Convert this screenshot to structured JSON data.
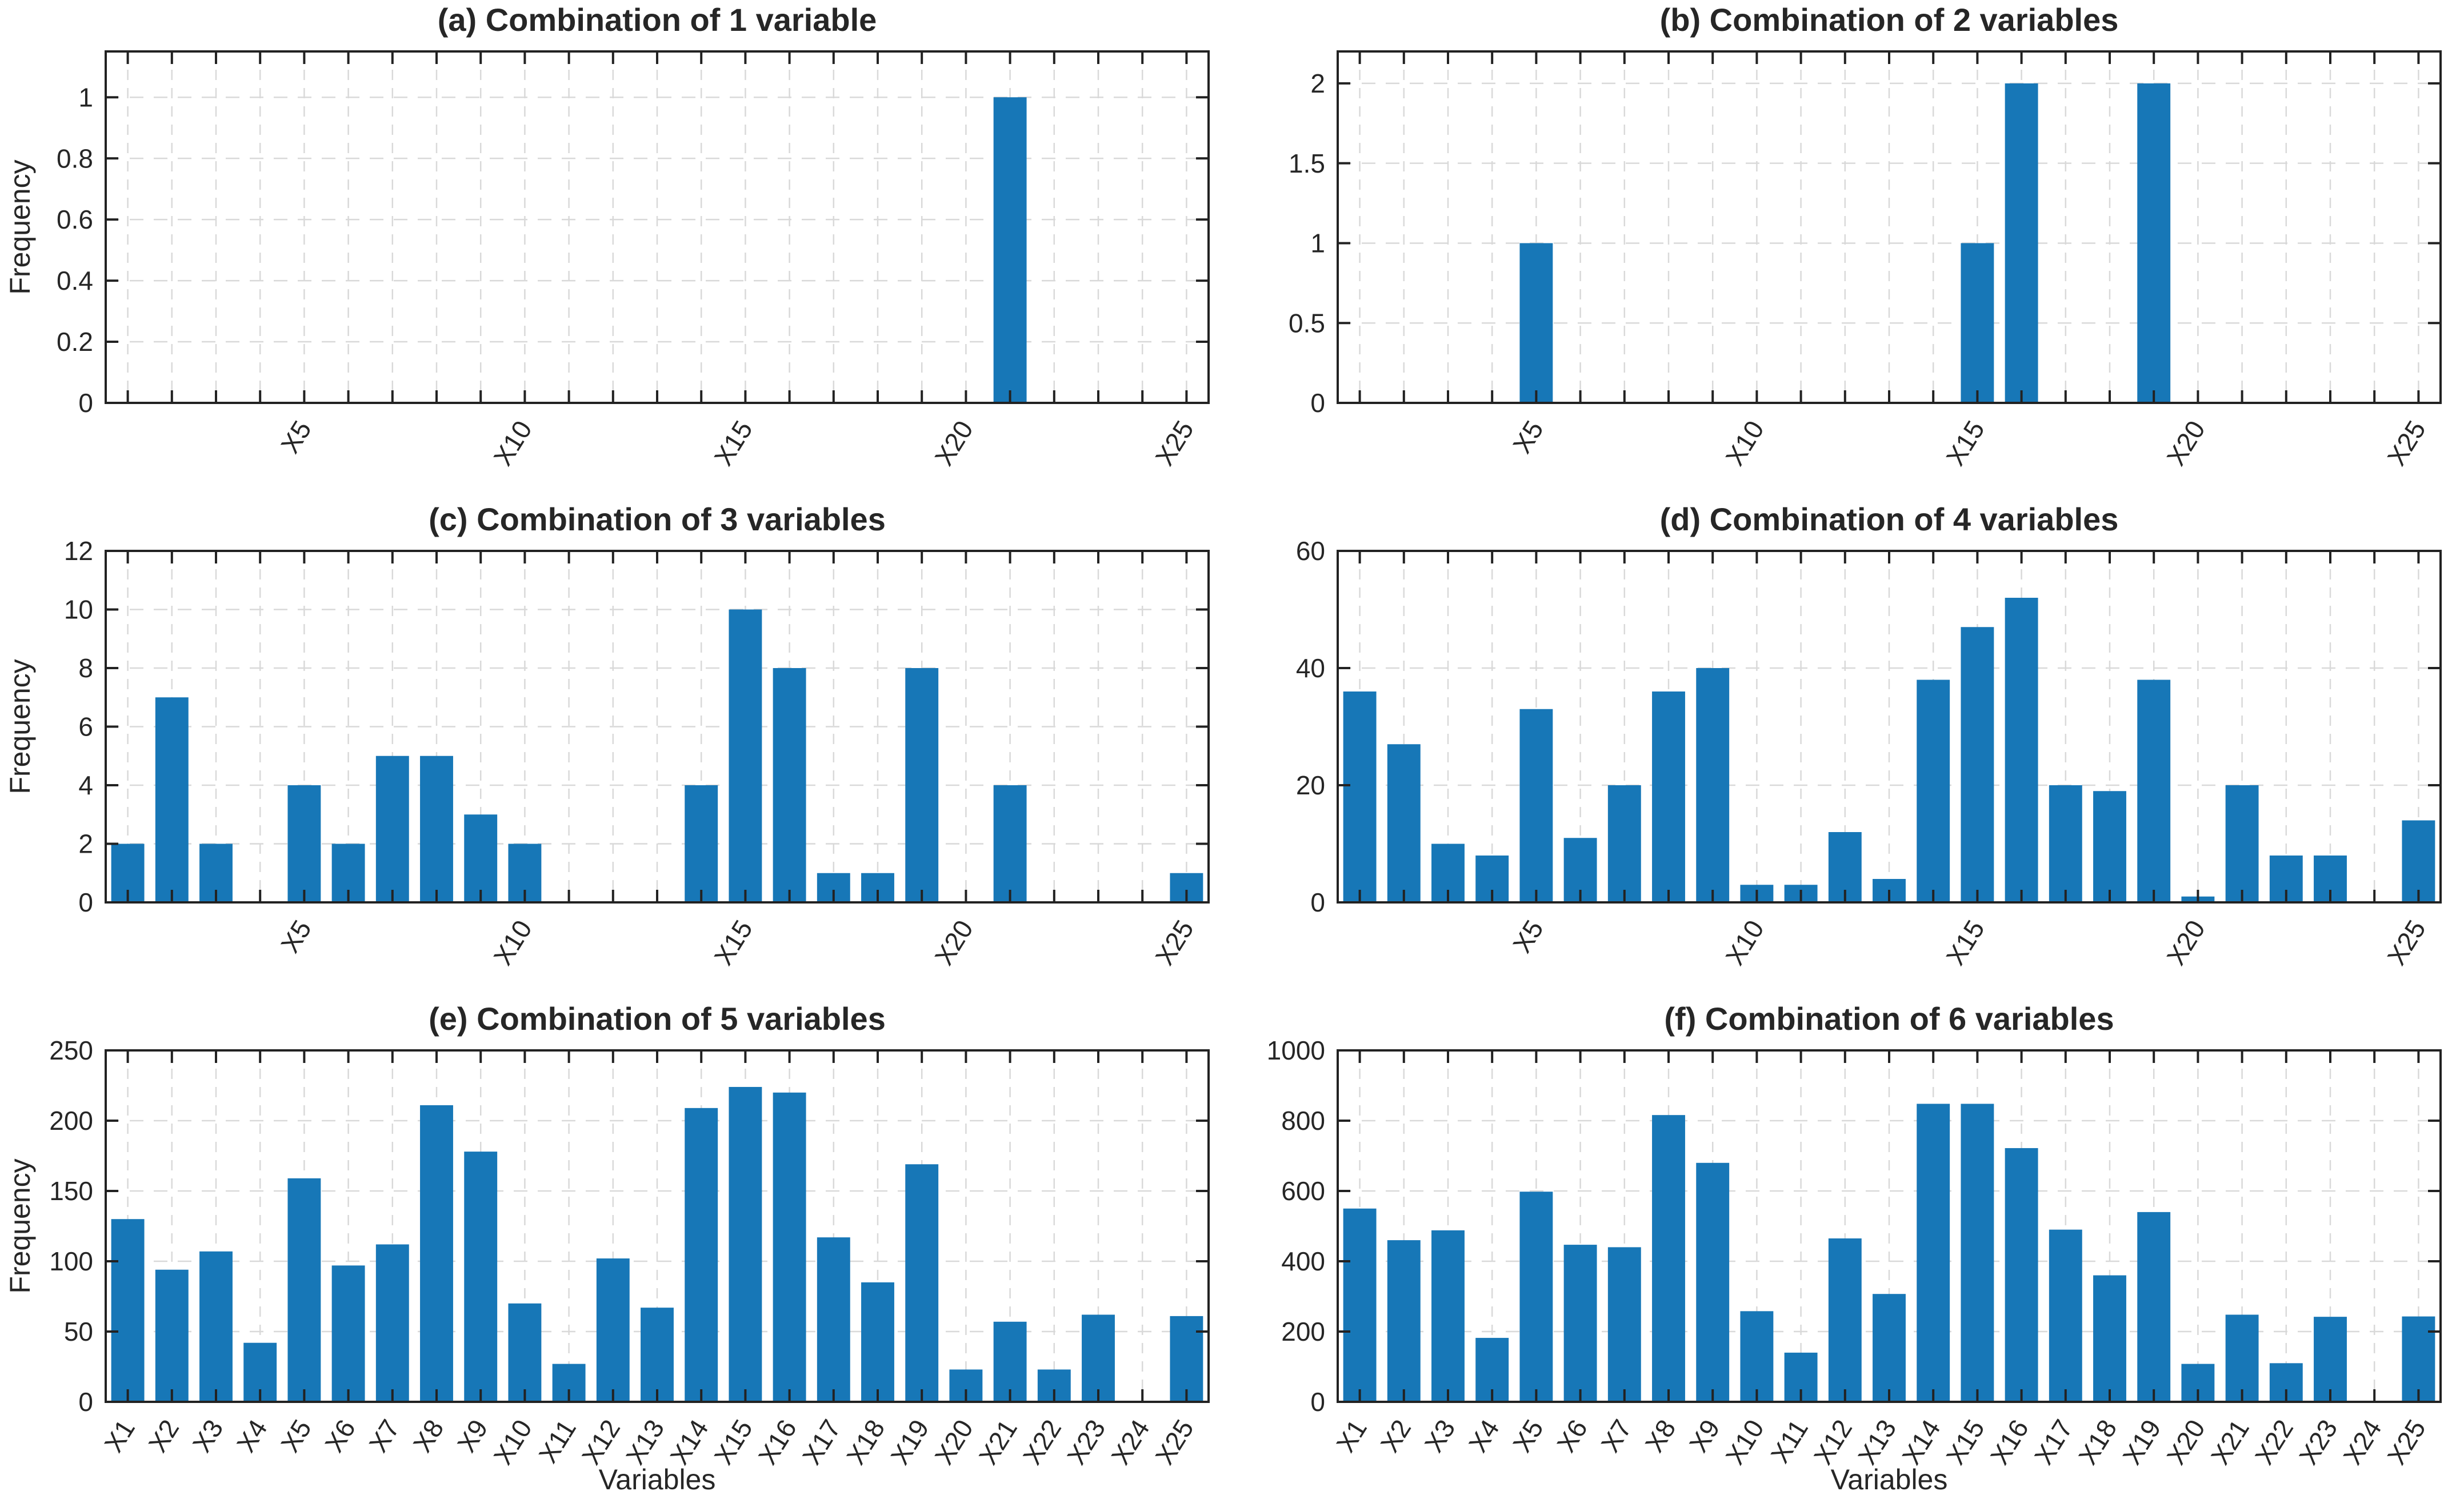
{
  "figure": {
    "background": "#ffffff",
    "bar_color": "#1777b7",
    "bar_edge_color": "#62a9d4",
    "grid_color": "#d9d9d9",
    "axis_color": "#222222",
    "text_color": "#262626",
    "ylabel_text": "Frequency",
    "xlabel_text": "Variables"
  },
  "categories": [
    "X1",
    "X2",
    "X3",
    "X4",
    "X5",
    "X6",
    "X7",
    "X8",
    "X9",
    "X10",
    "X11",
    "X12",
    "X13",
    "X14",
    "X15",
    "X16",
    "X17",
    "X18",
    "X19",
    "X20",
    "X21",
    "X22",
    "X23",
    "X24",
    "X25"
  ],
  "chart_data": [
    {
      "id": "a",
      "type": "bar",
      "title": "(a) Combination of 1 variable",
      "ylabel": "Frequency",
      "xlabel": "",
      "categories": [
        "X1",
        "X2",
        "X3",
        "X4",
        "X5",
        "X6",
        "X7",
        "X8",
        "X9",
        "X10",
        "X11",
        "X12",
        "X13",
        "X14",
        "X15",
        "X16",
        "X17",
        "X18",
        "X19",
        "X20",
        "X21",
        "X22",
        "X23",
        "X24",
        "X25"
      ],
      "values": [
        0,
        0,
        0,
        0,
        0,
        0,
        0,
        0,
        0,
        0,
        0,
        0,
        0,
        0,
        0,
        0,
        0,
        0,
        0,
        0,
        1,
        0,
        0,
        0,
        0
      ],
      "ylim": [
        0,
        1.15
      ],
      "ytick_values": [
        0,
        0.2,
        0.4,
        0.6,
        0.8,
        1
      ],
      "ytick_labels": [
        "0",
        "0.2",
        "0.4",
        "0.6",
        "0.8",
        "1"
      ],
      "xtick_label_step": 5,
      "grid": true,
      "legend": "none"
    },
    {
      "id": "b",
      "type": "bar",
      "title": "(b) Combination of 2 variables",
      "ylabel": "",
      "xlabel": "",
      "categories": [
        "X1",
        "X2",
        "X3",
        "X4",
        "X5",
        "X6",
        "X7",
        "X8",
        "X9",
        "X10",
        "X11",
        "X12",
        "X13",
        "X14",
        "X15",
        "X16",
        "X17",
        "X18",
        "X19",
        "X20",
        "X21",
        "X22",
        "X23",
        "X24",
        "X25"
      ],
      "values": [
        0,
        0,
        0,
        0,
        1,
        0,
        0,
        0,
        0,
        0,
        0,
        0,
        0,
        0,
        1,
        2,
        0,
        0,
        2,
        0,
        0,
        0,
        0,
        0,
        0
      ],
      "ylim": [
        0,
        2.2
      ],
      "ytick_values": [
        0,
        0.5,
        1,
        1.5,
        2
      ],
      "ytick_labels": [
        "0",
        "0.5",
        "1",
        "1.5",
        "2"
      ],
      "xtick_label_step": 5,
      "grid": true,
      "legend": "none"
    },
    {
      "id": "c",
      "type": "bar",
      "title": "(c) Combination of 3 variables",
      "ylabel": "Frequency",
      "xlabel": "",
      "categories": [
        "X1",
        "X2",
        "X3",
        "X4",
        "X5",
        "X6",
        "X7",
        "X8",
        "X9",
        "X10",
        "X11",
        "X12",
        "X13",
        "X14",
        "X15",
        "X16",
        "X17",
        "X18",
        "X19",
        "X20",
        "X21",
        "X22",
        "X23",
        "X24",
        "X25"
      ],
      "values": [
        2,
        7,
        2,
        0,
        4,
        2,
        5,
        5,
        3,
        2,
        0,
        0,
        0,
        4,
        10,
        8,
        1,
        1,
        8,
        0,
        4,
        0,
        0,
        0,
        1
      ],
      "ylim": [
        0,
        12
      ],
      "ytick_values": [
        0,
        2,
        4,
        6,
        8,
        10,
        12
      ],
      "ytick_labels": [
        "0",
        "2",
        "4",
        "6",
        "8",
        "10",
        "12"
      ],
      "xtick_label_step": 5,
      "grid": true,
      "legend": "none"
    },
    {
      "id": "d",
      "type": "bar",
      "title": "(d) Combination of 4 variables",
      "ylabel": "",
      "xlabel": "",
      "categories": [
        "X1",
        "X2",
        "X3",
        "X4",
        "X5",
        "X6",
        "X7",
        "X8",
        "X9",
        "X10",
        "X11",
        "X12",
        "X13",
        "X14",
        "X15",
        "X16",
        "X17",
        "X18",
        "X19",
        "X20",
        "X21",
        "X22",
        "X23",
        "X24",
        "X25"
      ],
      "values": [
        36,
        27,
        10,
        8,
        33,
        11,
        20,
        36,
        40,
        3,
        3,
        12,
        4,
        38,
        47,
        52,
        20,
        19,
        38,
        1,
        20,
        8,
        8,
        0,
        14
      ],
      "ylim": [
        0,
        60
      ],
      "ytick_values": [
        0,
        20,
        40,
        60
      ],
      "ytick_labels": [
        "0",
        "20",
        "40",
        "60"
      ],
      "xtick_label_step": 5,
      "grid": true,
      "legend": "none"
    },
    {
      "id": "e",
      "type": "bar",
      "title": "(e) Combination of 5 variables",
      "ylabel": "Frequency",
      "xlabel": "Variables",
      "categories": [
        "X1",
        "X2",
        "X3",
        "X4",
        "X5",
        "X6",
        "X7",
        "X8",
        "X9",
        "X10",
        "X11",
        "X12",
        "X13",
        "X14",
        "X15",
        "X16",
        "X17",
        "X18",
        "X19",
        "X20",
        "X21",
        "X22",
        "X23",
        "X24",
        "X25"
      ],
      "values": [
        130,
        94,
        107,
        42,
        159,
        97,
        112,
        211,
        178,
        70,
        27,
        102,
        67,
        209,
        224,
        220,
        117,
        85,
        169,
        23,
        57,
        23,
        62,
        0,
        61
      ],
      "ylim": [
        0,
        250
      ],
      "ytick_values": [
        0,
        50,
        100,
        150,
        200,
        250
      ],
      "ytick_labels": [
        "0",
        "50",
        "100",
        "150",
        "200",
        "250"
      ],
      "xtick_label_step": 1,
      "grid": true,
      "legend": "none"
    },
    {
      "id": "f",
      "type": "bar",
      "title": "(f) Combination of 6 variables",
      "ylabel": "",
      "xlabel": "Variables",
      "categories": [
        "X1",
        "X2",
        "X3",
        "X4",
        "X5",
        "X6",
        "X7",
        "X8",
        "X9",
        "X10",
        "X11",
        "X12",
        "X13",
        "X14",
        "X15",
        "X16",
        "X17",
        "X18",
        "X19",
        "X20",
        "X21",
        "X22",
        "X23",
        "X24",
        "X25"
      ],
      "values": [
        550,
        460,
        488,
        182,
        598,
        447,
        440,
        816,
        680,
        258,
        140,
        465,
        307,
        848,
        848,
        722,
        490,
        360,
        540,
        108,
        248,
        110,
        242,
        0,
        243
      ],
      "ylim": [
        0,
        1000
      ],
      "ytick_values": [
        0,
        200,
        400,
        600,
        800,
        1000
      ],
      "ytick_labels": [
        "0",
        "200",
        "400",
        "600",
        "800",
        "1000"
      ],
      "xtick_label_step": 1,
      "grid": true,
      "legend": "none"
    }
  ]
}
